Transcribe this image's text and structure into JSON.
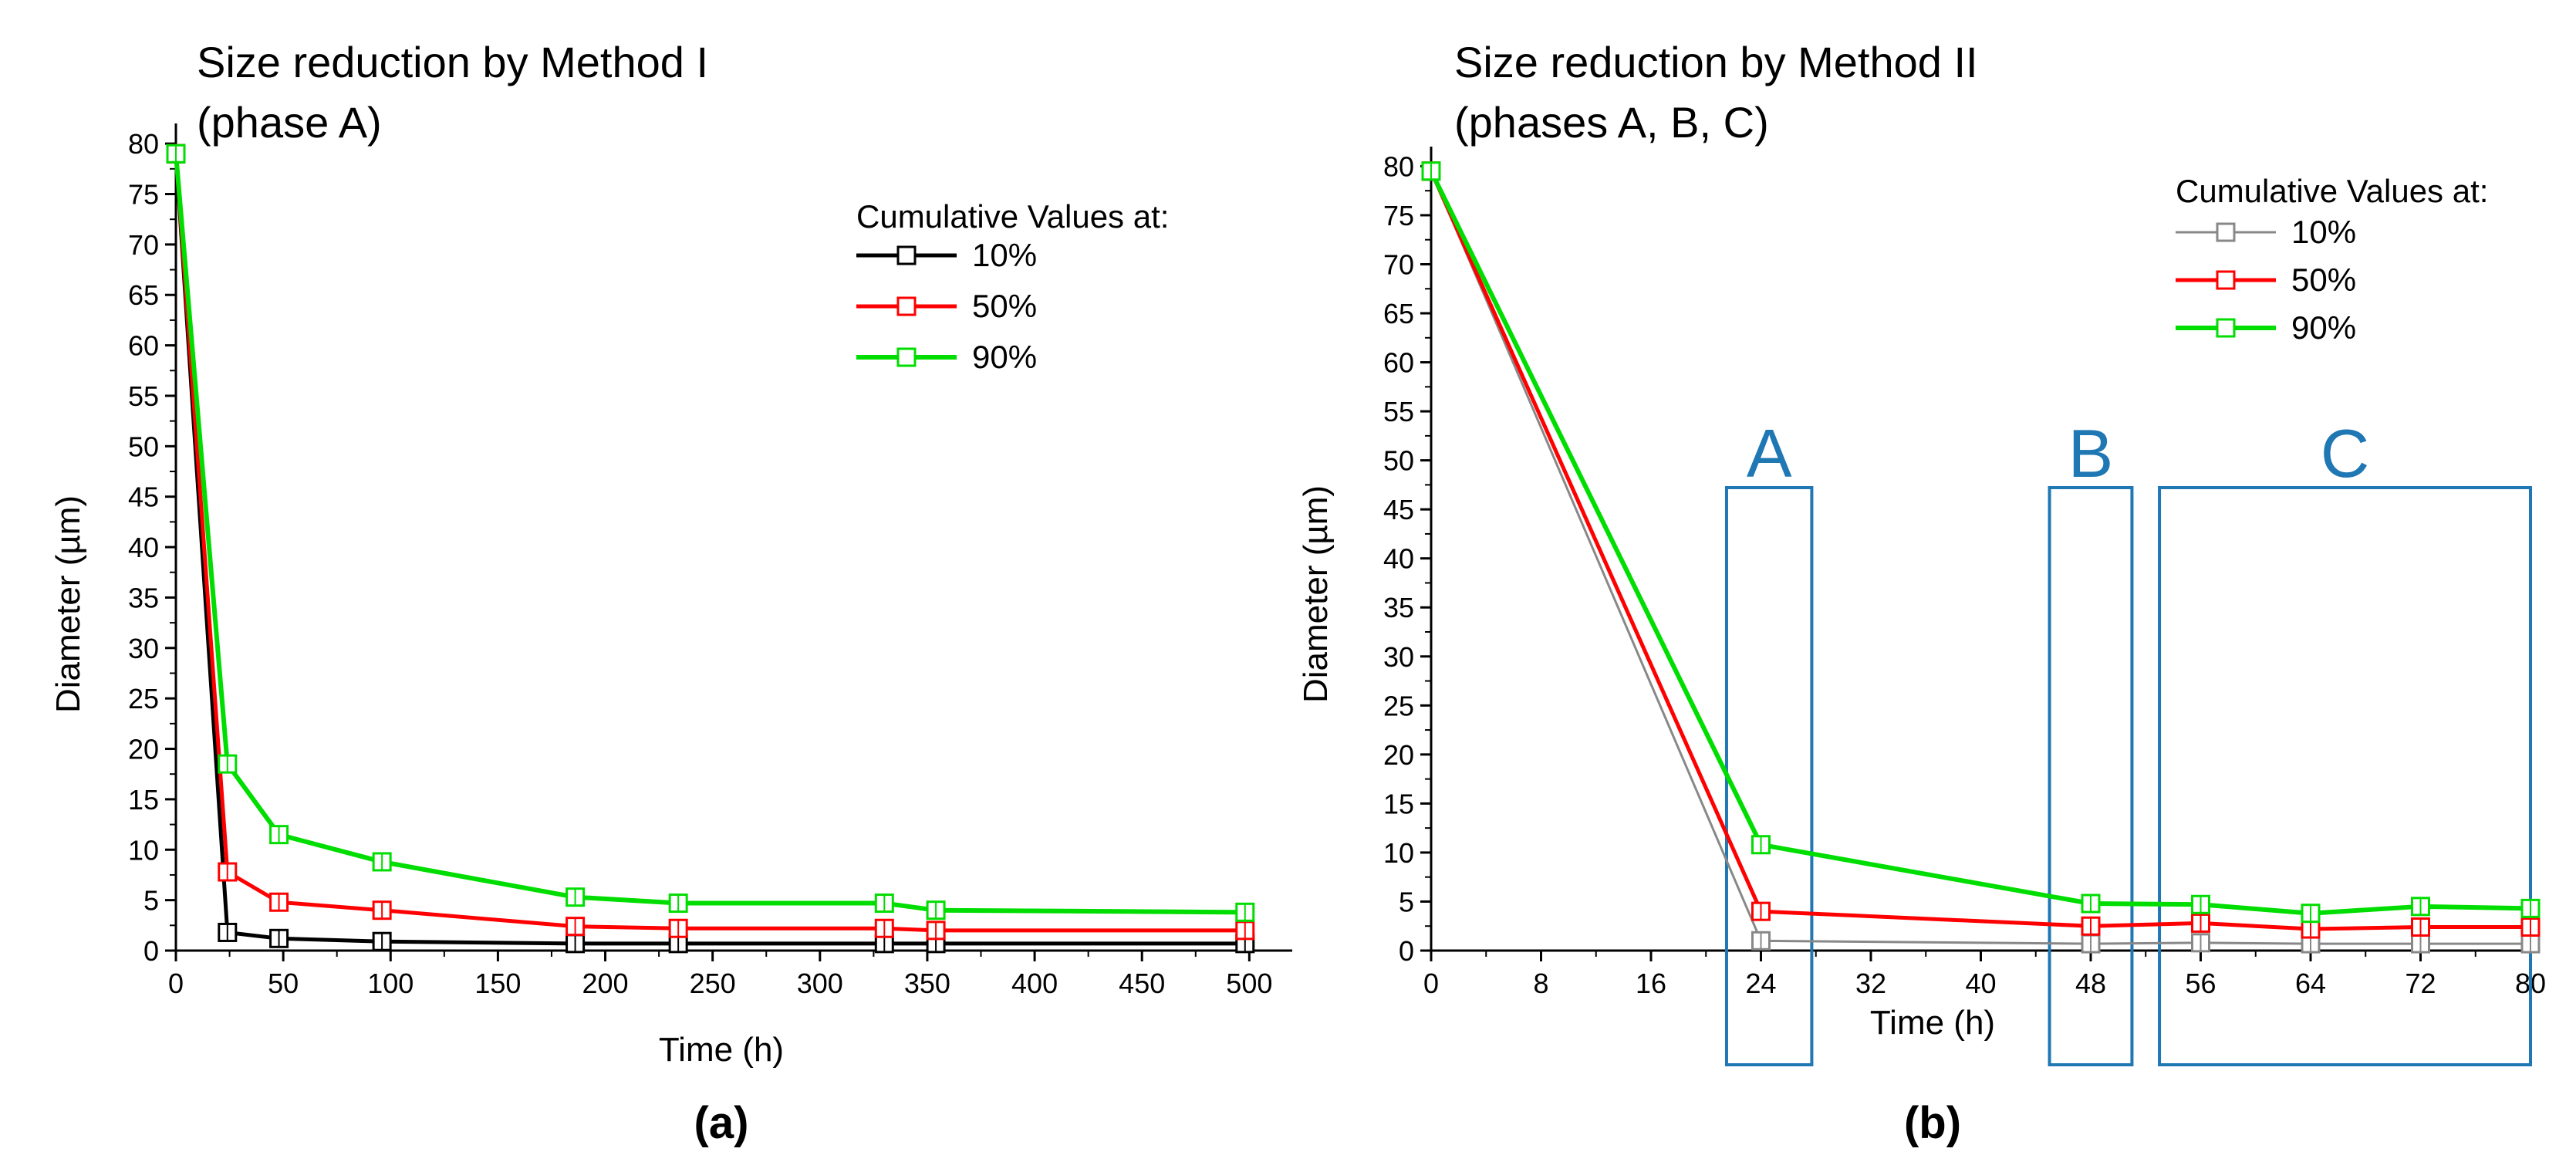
{
  "panels_labels": {
    "a": "(a)",
    "b": "(b)"
  },
  "chart_data": [
    {
      "type": "line",
      "title_line1": "Size reduction by Method I",
      "title_line2": "(phase A)",
      "panel_label": "(a)",
      "xlabel": "Time (h)",
      "ylabel": "Diameter (µm)",
      "xlim": [
        0,
        520
      ],
      "ylim": [
        0,
        82
      ],
      "x_ticks": [
        0,
        50,
        100,
        150,
        200,
        250,
        300,
        350,
        400,
        450,
        500
      ],
      "y_ticks": [
        0,
        5,
        10,
        15,
        20,
        25,
        30,
        35,
        40,
        45,
        50,
        55,
        60,
        65,
        70,
        75,
        80
      ],
      "legend_title": "Cumulative Values at:",
      "series": [
        {
          "name": "10%",
          "color": "#000000",
          "width": 5,
          "x": [
            0,
            24,
            48,
            96,
            186,
            234,
            330,
            354,
            498
          ],
          "y": [
            79,
            1.8,
            1.2,
            0.9,
            0.7,
            0.7,
            0.7,
            0.7,
            0.7
          ]
        },
        {
          "name": "50%",
          "color": "#ff0000",
          "width": 5,
          "x": [
            0,
            24,
            48,
            96,
            186,
            234,
            330,
            354,
            498
          ],
          "y": [
            79,
            7.8,
            4.8,
            4.0,
            2.4,
            2.2,
            2.2,
            2.0,
            2.0
          ]
        },
        {
          "name": "90%",
          "color": "#00dd00",
          "width": 6,
          "x": [
            0,
            24,
            48,
            96,
            186,
            234,
            330,
            354,
            498
          ],
          "y": [
            79,
            18.5,
            11.5,
            8.8,
            5.3,
            4.7,
            4.7,
            4.0,
            3.8
          ]
        }
      ]
    },
    {
      "type": "line",
      "title_line1": "Size reduction by Method II",
      "title_line2": "(phases A, B, C)",
      "panel_label": "(b)",
      "xlabel": "Time (h)",
      "ylabel": "Diameter (µm)",
      "xlim": [
        0,
        80
      ],
      "ylim": [
        0,
        82
      ],
      "x_ticks": [
        0,
        8,
        16,
        24,
        32,
        40,
        48,
        56,
        64,
        72,
        80
      ],
      "y_ticks": [
        0,
        5,
        10,
        15,
        20,
        25,
        30,
        35,
        40,
        45,
        50,
        55,
        60,
        65,
        70,
        75,
        80
      ],
      "legend_title": "Cumulative Values at:",
      "series": [
        {
          "name": "10%",
          "color": "#888888",
          "width": 3,
          "x": [
            0,
            24,
            48,
            56,
            64,
            72,
            80
          ],
          "y": [
            79.5,
            1.0,
            0.7,
            0.8,
            0.7,
            0.7,
            0.7
          ]
        },
        {
          "name": "50%",
          "color": "#ff0000",
          "width": 5,
          "x": [
            0,
            24,
            48,
            56,
            64,
            72,
            80
          ],
          "y": [
            79.5,
            4.0,
            2.5,
            2.8,
            2.2,
            2.4,
            2.4
          ]
        },
        {
          "name": "90%",
          "color": "#00dd00",
          "width": 6,
          "x": [
            0,
            24,
            48,
            56,
            64,
            72,
            80
          ],
          "y": [
            79.5,
            10.8,
            4.8,
            4.7,
            3.8,
            4.5,
            4.3
          ]
        }
      ],
      "phase_boxes": [
        {
          "label": "A",
          "x_range": [
            21.5,
            27.7
          ]
        },
        {
          "label": "B",
          "x_range": [
            45.0,
            51.0
          ]
        },
        {
          "label": "C",
          "x_range": [
            53.0,
            80.0
          ]
        }
      ],
      "phase_box_color": "#1f77b4"
    }
  ]
}
